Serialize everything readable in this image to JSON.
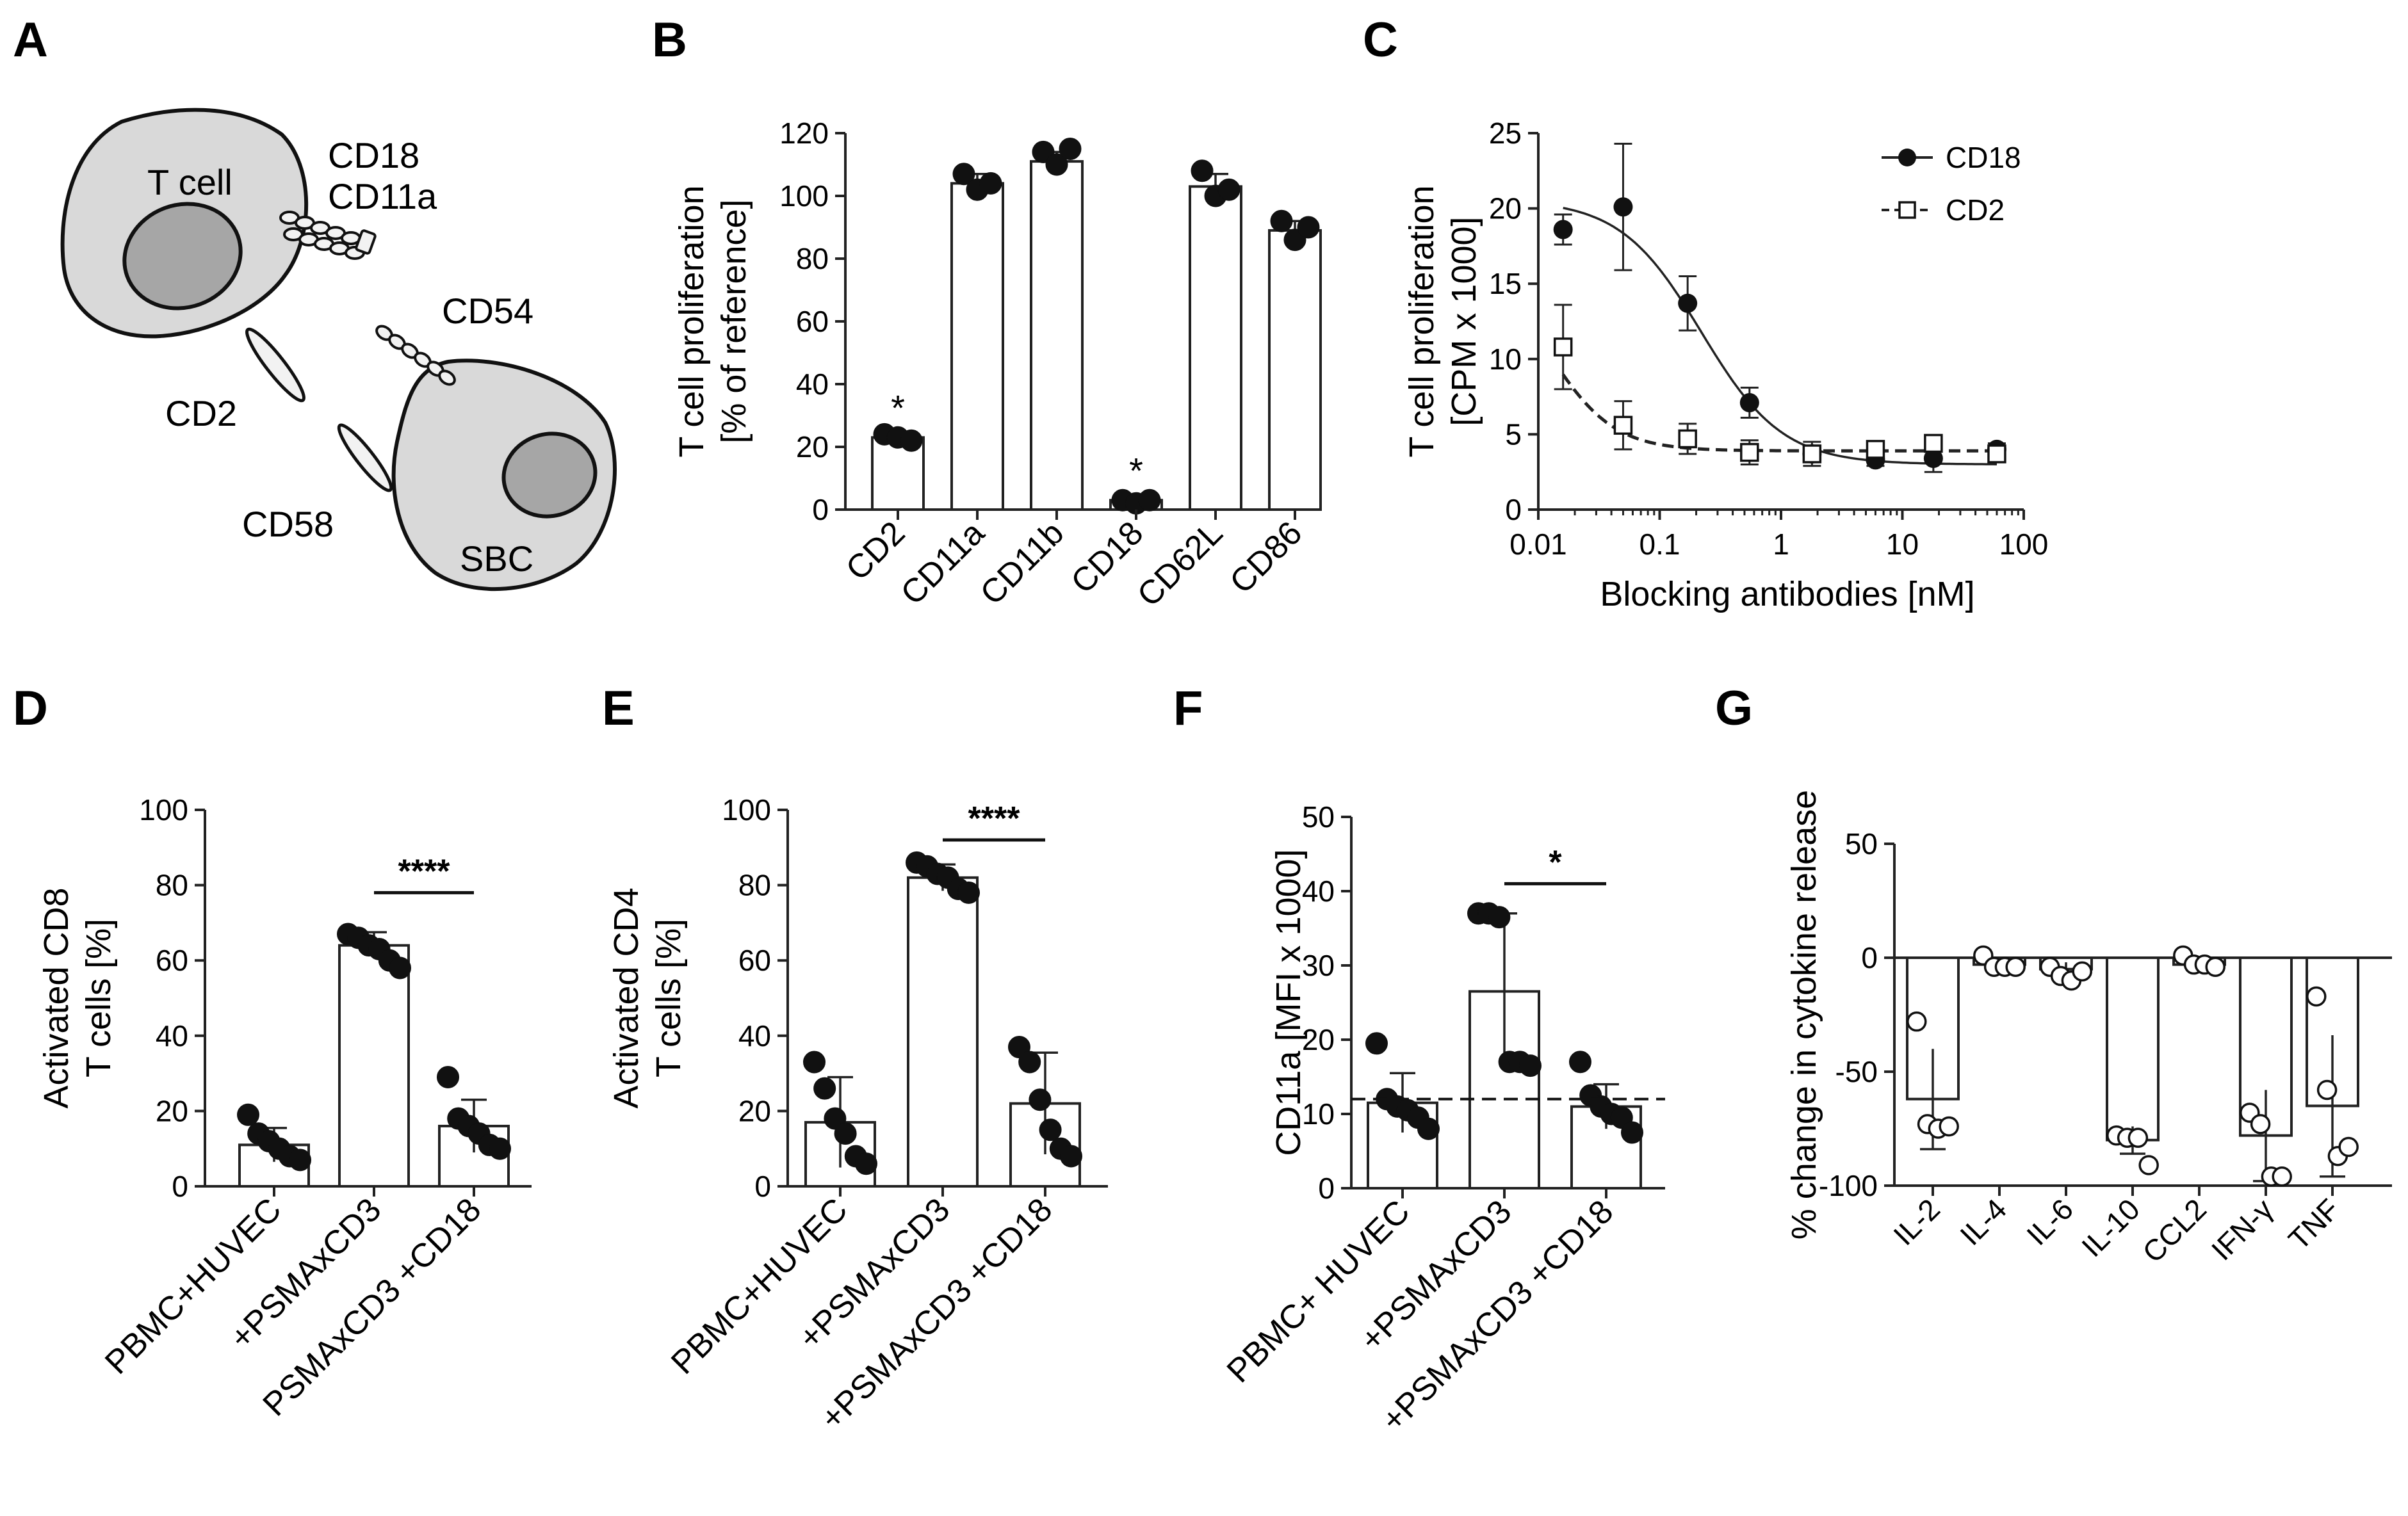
{
  "panel_labels": [
    "A",
    "B",
    "C",
    "D",
    "E",
    "F",
    "G"
  ],
  "panel_a": {
    "t_cell_label": "T cell",
    "sbc_label": "SBC",
    "cd18_label": "CD18",
    "cd11a_label": "CD11a",
    "cd54_label": "CD54",
    "cd2_label": "CD2",
    "cd58_label": "CD58"
  },
  "chart_data": [
    {
      "id": "B",
      "type": "bar",
      "title": "",
      "xlabel": "",
      "ylabel_line1": "T cell proliferation",
      "ylabel_line2": "[% of reference]",
      "ylim": [
        0,
        120
      ],
      "yticks": [
        0,
        20,
        40,
        60,
        80,
        100,
        120
      ],
      "categories": [
        "CD2",
        "CD11a",
        "CD11b",
        "CD18",
        "CD62L",
        "CD86"
      ],
      "values": [
        23,
        104,
        111,
        3,
        103,
        89
      ],
      "errors": [
        1,
        3,
        3,
        1,
        4,
        3
      ],
      "points": [
        [
          24,
          23,
          22
        ],
        [
          107,
          102,
          104
        ],
        [
          114,
          110,
          115
        ],
        [
          3,
          2,
          3
        ],
        [
          108,
          100,
          102
        ],
        [
          92,
          86,
          90
        ]
      ],
      "annotations": [
        {
          "category": "CD2",
          "text": "*"
        },
        {
          "category": "CD18",
          "text": "*"
        }
      ]
    },
    {
      "id": "C",
      "type": "line",
      "xscale": "log",
      "title": "",
      "xlabel": "Blocking antibodies [nM]",
      "ylabel_line1": "T cell proliferation",
      "ylabel_line2": "[CPM x 1000]",
      "xlim": [
        0.01,
        100
      ],
      "ylim": [
        0,
        25
      ],
      "xticks": [
        0.01,
        0.1,
        1,
        10,
        100
      ],
      "xtick_labels": [
        "0.01",
        "0.1",
        "1",
        "10",
        "100"
      ],
      "yticks": [
        0,
        5,
        10,
        15,
        20,
        25
      ],
      "legend_position": "top-right",
      "series": [
        {
          "name": "CD18",
          "marker": "filled-circle",
          "line": "solid",
          "x": [
            0.016,
            0.05,
            0.17,
            0.55,
            1.8,
            6,
            18,
            60
          ],
          "y": [
            18.6,
            20.1,
            13.7,
            7.1,
            3.7,
            3.3,
            3.4,
            4.0
          ],
          "err": [
            1.0,
            4.2,
            1.8,
            1.0,
            0.8,
            0.4,
            0.9,
            0.4
          ],
          "fit": {
            "top": 20.6,
            "bottom": 3.0,
            "ec50": 0.22,
            "hill": 1.3
          }
        },
        {
          "name": "CD2",
          "marker": "open-square",
          "line": "dashed",
          "x": [
            0.016,
            0.05,
            0.17,
            0.55,
            1.8,
            6,
            18,
            60
          ],
          "y": [
            10.8,
            5.6,
            4.7,
            3.8,
            3.7,
            4.0,
            4.4,
            3.7
          ],
          "err": [
            2.8,
            1.6,
            1.0,
            0.8,
            0.5,
            0.3,
            0.4,
            0.4
          ],
          "fit": {
            "top": 17.0,
            "bottom": 3.9,
            "ec50": 0.012,
            "hill": 1.6
          }
        }
      ]
    },
    {
      "id": "D",
      "type": "bar",
      "ylabel_line1": "Activated CD8",
      "ylabel_line2": "T cells [%]",
      "ylim": [
        0,
        100
      ],
      "yticks": [
        0,
        20,
        40,
        60,
        80,
        100
      ],
      "categories": [
        "PBMC+HUVEC",
        "+PSMAxCD3",
        "PSMAxCD3 +CD18"
      ],
      "values": [
        11,
        64,
        16
      ],
      "errors": [
        4.5,
        3.5,
        7
      ],
      "points": [
        [
          19,
          14,
          12,
          10,
          8,
          7
        ],
        [
          67,
          66,
          64,
          63,
          60,
          58
        ],
        [
          29,
          18,
          16,
          14,
          11,
          10
        ]
      ],
      "significance": [
        {
          "from": 1,
          "to": 2,
          "text": "****",
          "y": 78
        }
      ]
    },
    {
      "id": "E",
      "type": "bar",
      "ylabel_line1": "Activated CD4",
      "ylabel_line2": "T cells [%]",
      "ylim": [
        0,
        100
      ],
      "yticks": [
        0,
        20,
        40,
        60,
        80,
        100
      ],
      "categories": [
        "PBMC+HUVEC",
        "+PSMAxCD3",
        "+PSMAxCD3 +CD18"
      ],
      "values": [
        17,
        82,
        22
      ],
      "errors": [
        12,
        3.5,
        13.5
      ],
      "points": [
        [
          33,
          26,
          18,
          14,
          8,
          6
        ],
        [
          86,
          85,
          83,
          82,
          79,
          78
        ],
        [
          37,
          33,
          23,
          15,
          10,
          8
        ]
      ],
      "significance": [
        {
          "from": 1,
          "to": 2,
          "text": "****",
          "y": 92
        }
      ]
    },
    {
      "id": "F",
      "type": "bar",
      "ylabel_line1": "CD11a [MFI x 1000]",
      "ylim": [
        0,
        50
      ],
      "yticks": [
        0,
        10,
        20,
        30,
        40,
        50
      ],
      "categories": [
        "PBMC+ HUVEC",
        "+PSMAxCD3",
        "+PSMAxCD3 +CD18"
      ],
      "values": [
        11.5,
        26.5,
        11
      ],
      "errors": [
        4,
        10.5,
        3
      ],
      "points": [
        [
          19.5,
          12,
          11,
          10.5,
          9.5,
          8
        ],
        [
          37,
          37,
          36.5,
          17,
          17,
          16.5
        ],
        [
          17,
          12.5,
          11,
          10,
          9.5,
          7.5
        ]
      ],
      "reference_line": 12,
      "significance": [
        {
          "from": 1,
          "to": 2,
          "text": "*",
          "y": 41
        }
      ]
    },
    {
      "id": "G",
      "type": "bar",
      "ylabel_line1": "% change in cytokine release",
      "ylim": [
        -100,
        50
      ],
      "yticks": [
        -100,
        -50,
        0,
        50
      ],
      "categories": [
        "IL-2",
        "IL-4",
        "IL-6",
        "IL-10",
        "CCL2",
        "IFN-γ",
        "TNF"
      ],
      "values": [
        -62,
        -3,
        -5,
        -80,
        -3,
        -78,
        -65
      ],
      "errors": [
        22,
        2,
        3,
        6,
        2,
        20,
        31
      ],
      "points": [
        [
          -28,
          -73,
          -75,
          -74
        ],
        [
          1,
          -4,
          -4,
          -4
        ],
        [
          -4,
          -8,
          -10,
          -6
        ],
        [
          -78,
          -79,
          -79,
          -91
        ],
        [
          1,
          -3,
          -3,
          -4
        ],
        [
          -68,
          -73,
          -96,
          -96
        ],
        [
          -17,
          -58,
          -87,
          -83
        ]
      ]
    }
  ]
}
